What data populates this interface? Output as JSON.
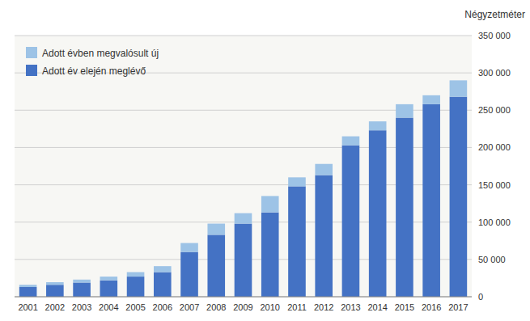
{
  "chart_data": {
    "type": "bar",
    "stacked": true,
    "ylabel": "Négyzetméter",
    "categories": [
      "2001",
      "2002",
      "2003",
      "2004",
      "2005",
      "2006",
      "2007",
      "2008",
      "2009",
      "2010",
      "2011",
      "2012",
      "2013",
      "2014",
      "2015",
      "2016",
      "2017"
    ],
    "series": [
      {
        "name": "Adott év elején meglévő",
        "color": "#4472C4",
        "values": [
          13000,
          16000,
          19000,
          22000,
          27000,
          33000,
          60000,
          83000,
          98000,
          113000,
          148000,
          163000,
          203000,
          223000,
          240000,
          258000,
          268000
        ]
      },
      {
        "name": "Adott évben megvalósult új",
        "color": "#9DC3E6",
        "values": [
          3000,
          3500,
          4000,
          5000,
          6000,
          8000,
          12000,
          15000,
          14000,
          22000,
          12000,
          15000,
          12000,
          12000,
          18000,
          12000,
          22000
        ]
      }
    ],
    "ylim": [
      0,
      350000
    ],
    "yticks": [
      0,
      {
        "value": 50000,
        "label": "50 000"
      },
      {
        "value": 100000,
        "label": "100 000"
      },
      {
        "value": 150000,
        "label": "150 000"
      },
      {
        "value": 200000,
        "label": "200 000"
      },
      {
        "value": 250000,
        "label": "250 000"
      },
      {
        "value": 300000,
        "label": "300 000"
      },
      {
        "value": 350000,
        "label": "350 000"
      }
    ],
    "grid": true,
    "legend": "upper left"
  }
}
